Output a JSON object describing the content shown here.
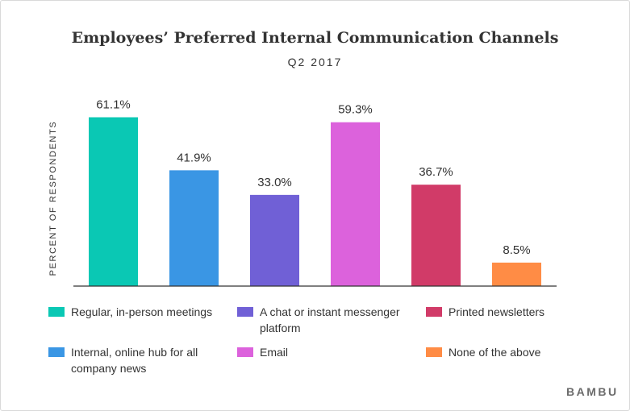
{
  "chart_data": {
    "type": "bar",
    "title": "Employees’ Preferred Internal Communication Channels",
    "subtitle": "Q2 2017",
    "ylabel": "PERCENT OF RESPONDENTS",
    "xlabel": "",
    "categories": [
      "Regular, in-person meetings",
      "Internal, online hub for all company news",
      "A chat or instant messenger platform",
      "Email",
      "Printed newsletters",
      "None of the above"
    ],
    "values": [
      61.1,
      41.9,
      33.0,
      59.3,
      36.7,
      8.5
    ],
    "data_labels": [
      "61.1%",
      "41.9%",
      "33.0%",
      "59.3%",
      "36.7%",
      "8.5%"
    ],
    "colors": [
      "#0ac8b4",
      "#3a96e4",
      "#7060d6",
      "#dc62dc",
      "#d13b68",
      "#ff8c45"
    ],
    "ylim": [
      0,
      70
    ],
    "grid": false,
    "legend": "bottom"
  },
  "legend_items": [
    {
      "label": "Regular, in-person meetings",
      "color": "#0ac8b4"
    },
    {
      "label": "Internal, online hub for all company news",
      "color": "#3a96e4"
    },
    {
      "label": "A chat or instant messenger platform",
      "color": "#7060d6"
    },
    {
      "label": "Email",
      "color": "#dc62dc"
    },
    {
      "label": "Printed newsletters",
      "color": "#d13b68"
    },
    {
      "label": "None of the above",
      "color": "#ff8c45"
    }
  ],
  "branding": {
    "logo_text": "BAMBU"
  }
}
